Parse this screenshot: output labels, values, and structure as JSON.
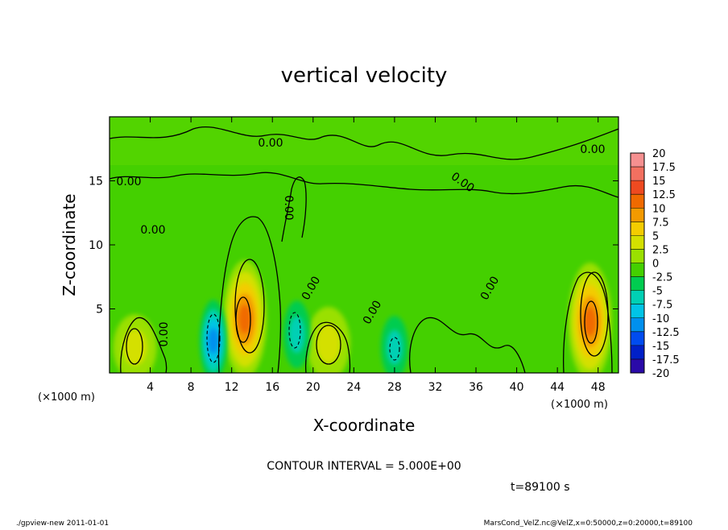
{
  "chart_data": {
    "type": "heatmap",
    "title": "vertical velocity",
    "xlabel": "X-coordinate",
    "ylabel": "Z-coordinate",
    "x_unit_label": "(×1000 m)",
    "y_unit_label": "(×1000 m)",
    "xlim": [
      0,
      50
    ],
    "ylim": [
      0,
      20
    ],
    "x_ticks": [
      4,
      8,
      12,
      16,
      20,
      24,
      28,
      32,
      36,
      40,
      44,
      48
    ],
    "y_ticks": [
      5,
      10,
      15
    ],
    "color_scale": {
      "levels": [
        "20",
        "17.5",
        "15",
        "12.5",
        "10",
        "7.5",
        "5",
        "2.5",
        "0",
        "-2.5",
        "-5",
        "-7.5",
        "-10",
        "-12.5",
        "-15",
        "-17.5",
        "-20"
      ],
      "colors": [
        "#f59090",
        "#f37060",
        "#ee4a20",
        "#f06a00",
        "#f39a00",
        "#f3cc00",
        "#d4e000",
        "#9ae000",
        "#44d000",
        "#00cc50",
        "#00d0b4",
        "#00c4e6",
        "#0090ee",
        "#004cf0",
        "#0020c8",
        "#2a0aa8",
        "#6a10a8"
      ]
    },
    "contour_interval_text": "CONTOUR INTERVAL = 5.000E+00",
    "contour_labels": [
      "0.00",
      "0.00",
      "0.00",
      "0.00",
      "0.00",
      "0.00",
      "0.00",
      "0.00",
      "0.00",
      "0.00"
    ],
    "features": [
      {
        "kind": "updraft",
        "x": 2.5,
        "z": 2.0,
        "peak": 5
      },
      {
        "kind": "updraft",
        "x": 13.3,
        "z": 4.2,
        "peak": 12
      },
      {
        "kind": "updraft",
        "x": 21.5,
        "z": 2.3,
        "peak": 6
      },
      {
        "kind": "updraft",
        "x": 47.2,
        "z": 4.0,
        "peak": 12
      },
      {
        "kind": "downdraft",
        "x": 10.2,
        "z": 2.5,
        "peak": -9
      },
      {
        "kind": "downdraft",
        "x": 18.4,
        "z": 3.0,
        "peak": -6
      },
      {
        "kind": "downdraft",
        "x": 28.0,
        "z": 2.0,
        "peak": -5
      }
    ],
    "time_label": "t=89100 s"
  },
  "footer": {
    "left": "./gpview-new   2011-01-01",
    "right": "MarsCond_VelZ.nc@VelZ,x=0:50000,z=0:20000,t=89100"
  }
}
